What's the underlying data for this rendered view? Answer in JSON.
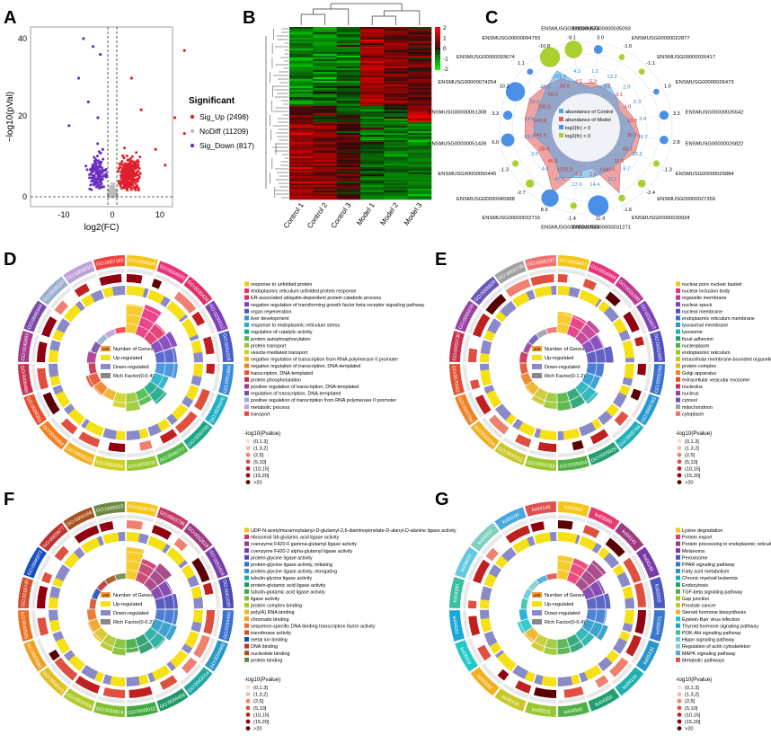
{
  "panel_letters": [
    "A",
    "B",
    "C",
    "D",
    "E",
    "F",
    "G"
  ],
  "volcano": {
    "ylabel": "−log10(pVal)",
    "xlabel": "log2(FC)",
    "xticks": [
      "-10",
      "0",
      "10"
    ],
    "yticks": [
      "0",
      "20",
      "40"
    ],
    "legend_title": "Significant",
    "legend": [
      {
        "label": "Sig_Up (2498)",
        "color": "#e0202c"
      },
      {
        "label": "NoDiff (11209)",
        "color": "#bdbdbd"
      },
      {
        "label": "Sig_Down (817)",
        "color": "#6a2fc0"
      }
    ]
  },
  "heatmap": {
    "columns": [
      "Control 1",
      "Control 2",
      "Control 3",
      "Model 1",
      "Model 2",
      "Model 3"
    ],
    "scale_ticks": [
      "2",
      "1",
      "0",
      "-1",
      "-2"
    ]
  },
  "radar": {
    "genes": [
      "ENSMUSG00000035093",
      "ENSMUSG00000022877",
      "ENSMUSG00000026417",
      "ENSMUSG00000026473",
      "ENSMUSG00000026542",
      "ENSMUSG00000026822",
      "ENSMUSG00000026884",
      "ENSMUSG00000027359",
      "ENSMUSG00000030934",
      "ENSMUSG00000031271",
      "ENSMUSG00000032083",
      "ENSMUSG00000032715",
      "ENSMUSG00000045988",
      "ENSMUSG00000050445",
      "ENSMUSG00000051439",
      "ENSMUSG00000061308",
      "ENSMUSG00000074254",
      "ENSMUSG00000093674",
      "ENSMUSG00000094793",
      "ENSMUSG00000096674"
    ],
    "fc_labels": [
      "3.0",
      "-1.0",
      "-1.1",
      "1.0",
      "3.3",
      "2.8",
      "-1.3",
      "-2.4",
      "-1.6",
      "11.4",
      "-1.4",
      "8.9",
      "-2.7",
      "-1.3",
      "6.0",
      "3.3",
      "10.2",
      "1.1",
      "-10.8",
      "-9.1"
    ],
    "model_vals": [
      "5.3",
      "3.2",
      "3.1",
      "4.0",
      "13.3",
      "36.7",
      "43.7",
      "11.8",
      "1440.6",
      "1.6",
      "4.8",
      "1270.2",
      "45.5",
      "28.6",
      "141.5",
      "140.8",
      "202.6",
      "80.0",
      "39.6",
      "4.5"
    ],
    "control_vals": [
      "1.2",
      "13.2",
      "2.9",
      "0.3",
      "3.4",
      "16.7",
      "12.2",
      "8.7",
      "11.1",
      "14.4",
      "17.0",
      "47.5",
      "4.4",
      "3.6",
      "23.7",
      "23.5",
      "19.6",
      "48.0",
      "231.2",
      "4.3"
    ],
    "legend": [
      {
        "label": "abundance of Control",
        "color": "#4aa8e8"
      },
      {
        "label": "abundance of Model",
        "color": "#e05a5a"
      },
      {
        "label": "log2(fc) > 0",
        "color": "#4a8fe8"
      },
      {
        "label": "log2(fc) < 0",
        "color": "#a8d030"
      }
    ]
  },
  "circos_common": {
    "legend_number": "Number of Genes",
    "legend_up": "Up-regulated",
    "legend_down": "Down-regulated",
    "p_title": "-log10(Pvalue)",
    "p_bins": [
      "(0,1.3]",
      "(1.3,2]",
      "(2,5]",
      "(5,10]",
      "(10,15]",
      "(15,20]",
      ">20"
    ],
    "p_colors": [
      "#fde0d0",
      "#f8b8a0",
      "#f08070",
      "#e05040",
      "#c02020",
      "#900010",
      "#5a0000"
    ]
  },
  "circos": [
    {
      "letter": "D",
      "rich": "Rich Factor(0-0.4)",
      "box_value": "100",
      "ids": [
        "GO:0006986",
        "GO:0034620",
        "GO:0030433",
        "GO:0030512",
        "GO:0031018",
        "GO:0001889",
        "GO:0034976",
        "GO:0050790",
        "GO:0046777",
        "GO:0015031",
        "GO:0016192",
        "GO:0000122",
        "GO:0045892",
        "GO:0006351",
        "GO:0006468",
        "GO:0045893",
        "GO:0045944",
        "GO:0008152",
        "GO:0006810",
        "GO:0007165"
      ],
      "terms": [
        "response to unfolded protein",
        "endoplasmic reticulum unfolded protein response",
        "ER-associated ubiquitin-dependent protein catabolic process",
        "negative regulation of transforming growth factor beta receptor signaling pathway",
        "organ regeneration",
        "liver development",
        "response to endoplasmic reticulum stress",
        "regulation of catalytic activity",
        "protein autophosphorylation",
        "protein transport",
        "vesicle-mediated transport",
        "negative regulation of transcription from RNA polymerase II promoter",
        "negative regulation of transcription, DNA-templated",
        "transcription, DNA-templated",
        "protein phosphorylation",
        "positive regulation of transcription, DNA-templated",
        "regulation of transcription, DNA-templated",
        "positive regulation of transcription from RNA polymerase II promoter",
        "metabolic process",
        "transport"
      ],
      "colors": [
        "#f5c518",
        "#e8327c",
        "#e0306a",
        "#7e3fb8",
        "#4a5cc8",
        "#3a8cd8",
        "#20b0c8",
        "#18a888",
        "#50b848",
        "#98c830",
        "#d0d020",
        "#f0b020",
        "#f08020",
        "#e85030",
        "#c83050",
        "#a8388c",
        "#7a4aa8",
        "#9ab0d0",
        "#c0a0d8",
        "#f04040"
      ]
    },
    {
      "letter": "E",
      "rich": "Rich Factor(0-1.2)",
      "box_value": "100",
      "ids": [
        "GO:0005637",
        "GO:0016604",
        "GO:0031090",
        "GO:0016607",
        "GO:0031965",
        "GO:0005789",
        "GO:0005765",
        "GO:0005764",
        "GO:0005925",
        "GO:0005654",
        "GO:0005783",
        "GO:0043231",
        "GO:0043234",
        "GO:0005794",
        "GO:0070062",
        "GO:0005730",
        "GO:0005634",
        "GO:0005829",
        "GO:0005739",
        "GO:0005737"
      ],
      "terms": [
        "nuclear pore nuclear basket",
        "nuclear inclusion body",
        "organelle membrane",
        "nuclear speck",
        "nuclear membrane",
        "endoplasmic reticulum membrane",
        "lysosomal membrane",
        "lysosome",
        "focal adhesion",
        "nucleoplasm",
        "endoplasmic reticulum",
        "intracellular membrane-bounded organelle",
        "protein complex",
        "Golgi apparatus",
        "extracellular vesicular exosome",
        "nucleolus",
        "nucleus",
        "cytosol",
        "mitochondrion",
        "cytoplasm"
      ],
      "colors": [
        "#f5c518",
        "#e8327c",
        "#c03a90",
        "#8040b8",
        "#5050c0",
        "#3a70d0",
        "#2898d0",
        "#20b0b8",
        "#20a070",
        "#50b040",
        "#98c830",
        "#c8c828",
        "#f0b020",
        "#f08020",
        "#e05030",
        "#c83050",
        "#9a40a0",
        "#6a58b8",
        "#a0a0a0",
        "#f07070"
      ]
    },
    {
      "letter": "F",
      "rich": "Rich Factor(0-0.2)",
      "box_value": "100",
      "ids": [
        "GO:0008766",
        "GO:0003735",
        "GO:0052618",
        "GO:0052619",
        "GO:0061630",
        "GO:0034450",
        "GO:0034460",
        "GO:0043014",
        "GO:0034458",
        "GO:0043015",
        "GO:0016874",
        "GO:0032403",
        "GO:0008143",
        "GO:0003682",
        "GO:0043565",
        "GO:0016740",
        "GO:0046872",
        "GO:0003677",
        "GO:0000166",
        "GO:0005515"
      ],
      "terms": [
        "UDP-N-acetylmuramoylalanyl-D-glutamyl-2,6-diaminopimelate-D-alanyl-D-alanine ligase activity",
        "ribosomal S6-glutamic acid ligase activity",
        "coenzyme F420-0 gamma-glutamyl ligase activity",
        "coenzyme F420-2 alpha-glutamyl ligase activity",
        "protein-glycine ligase activity",
        "protein-glycine ligase activity, initiating",
        "protein-glycine ligase activity, elongating",
        "tubulin-glycine ligase activity",
        "protein-glutamic acid ligase activity",
        "tubulin-glutamic acid ligase activity",
        "ligase activity",
        "protein complex binding",
        "poly(A) RNA binding",
        "chromatin binding",
        "sequence-specific DNA binding transcription factor activity",
        "transferase activity",
        "metal ion binding",
        "DNA binding",
        "nucleotide binding",
        "protein binding"
      ],
      "colors": [
        "#f5c518",
        "#c83a6a",
        "#a03a80",
        "#7a3aa8",
        "#4a4ab8",
        "#3a70d0",
        "#2898c8",
        "#20a8a0",
        "#209868",
        "#40a840",
        "#80c030",
        "#b0c828",
        "#e0c020",
        "#f0a020",
        "#e87020",
        "#d05030",
        "#1850c0",
        "#c03030",
        "#a85020",
        "#6a8840"
      ]
    },
    {
      "letter": "G",
      "rich": "Rich Factor(0-0.4)",
      "box_value": "100",
      "ids": [
        "ko00310",
        "ko03060",
        "ko04141",
        "ko04146",
        "ko03320",
        "ko00071",
        "ko05220",
        "ko04144",
        "ko04350",
        "ko04540",
        "ko05215",
        "ko00100",
        "ko05169",
        "ko04919",
        "ko04151",
        "ko04390",
        "ko04810",
        "ko04010",
        "ko01100",
        "ko04145"
      ],
      "terms": [
        "Lysine degradation",
        "Protein export",
        "Protein processing in endoplasmic reticulum",
        "Melanoma",
        "Peroxisome",
        "PPAR signaling pathway",
        "Fatty acid metabolism",
        "Chronic myeloid leukemia",
        "Endocytosis",
        "TGF-beta signaling pathway",
        "Gap junction",
        "Prostate cancer",
        "Steroid hormone biosynthesis",
        "Epstein-Barr virus infection",
        "Thyroid hormone signaling pathway",
        "PI3K-Akt signaling pathway",
        "Hippo signaling pathway",
        "Regulation of actin cytoskeleton",
        "MAPK signaling pathway",
        "Metabolic pathways"
      ],
      "colors": [
        "#f5c518",
        "#e83a70",
        "#a03a80",
        "#7a3aa8",
        "#4a58c0",
        "#3a78d0",
        "#2898c8",
        "#20b0b0",
        "#20a070",
        "#50b048",
        "#98c830",
        "#c8c828",
        "#f0b020",
        "#20c8c8",
        "#18a8d8",
        "#3ac0a0",
        "#60c8e0",
        "#80d0c0",
        "#48a8e0",
        "#e05050"
      ]
    }
  ]
}
